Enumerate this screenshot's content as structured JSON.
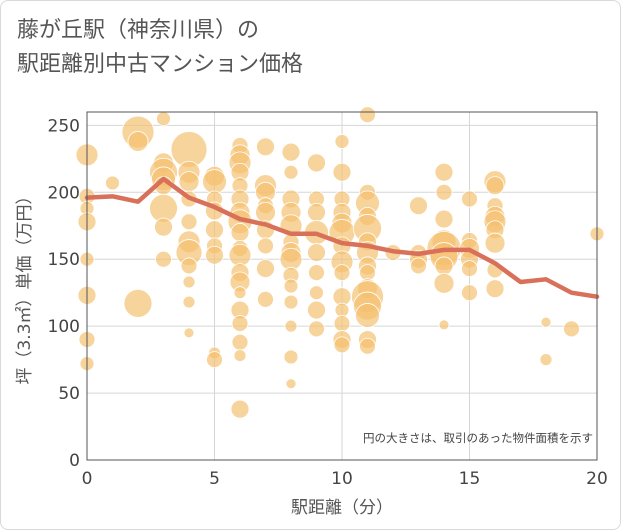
{
  "title_lines": [
    "藤が丘駅（神奈川県）の",
    "駅距離別中古マンション価格"
  ],
  "chart_data": {
    "type": "scatter",
    "xlabel": "駅距離（分）",
    "ylabel": "坪（3.3㎡）単価（万円）",
    "xlim": [
      0,
      20
    ],
    "ylim": [
      0,
      260
    ],
    "xticks": [
      0,
      5,
      10,
      15,
      20
    ],
    "yticks": [
      0,
      50,
      100,
      150,
      200,
      250
    ],
    "grid": true,
    "annotation": "円の大きさは、取引のあった物件面積を示す",
    "bubble_color": "#f5c06e",
    "line_color": "#d9705a",
    "points": [
      [
        0,
        228,
        11
      ],
      [
        0,
        197,
        8
      ],
      [
        0,
        188,
        7
      ],
      [
        0,
        178,
        9
      ],
      [
        0,
        150,
        7
      ],
      [
        0,
        123,
        9
      ],
      [
        0,
        90,
        8
      ],
      [
        0,
        72,
        7
      ],
      [
        1,
        207,
        7
      ],
      [
        2,
        245,
        16
      ],
      [
        2,
        238,
        10
      ],
      [
        2,
        117,
        14
      ],
      [
        3,
        255,
        7
      ],
      [
        3,
        222,
        10
      ],
      [
        3,
        215,
        14
      ],
      [
        3,
        210,
        12
      ],
      [
        3,
        205,
        9
      ],
      [
        3,
        188,
        14
      ],
      [
        3,
        174,
        9
      ],
      [
        3,
        150,
        8
      ],
      [
        4,
        232,
        18
      ],
      [
        4,
        215,
        11
      ],
      [
        4,
        208,
        10
      ],
      [
        4,
        195,
        8
      ],
      [
        4,
        178,
        8
      ],
      [
        4,
        163,
        11
      ],
      [
        4,
        155,
        13
      ],
      [
        4,
        145,
        8
      ],
      [
        4,
        133,
        6
      ],
      [
        4,
        118,
        6
      ],
      [
        4,
        95,
        5
      ],
      [
        5,
        212,
        10
      ],
      [
        5,
        208,
        12
      ],
      [
        5,
        195,
        8
      ],
      [
        5,
        186,
        9
      ],
      [
        5,
        172,
        9
      ],
      [
        5,
        160,
        8
      ],
      [
        5,
        153,
        9
      ],
      [
        5,
        80,
        6
      ],
      [
        5,
        75,
        8
      ],
      [
        6,
        235,
        8
      ],
      [
        6,
        228,
        10
      ],
      [
        6,
        222,
        11
      ],
      [
        6,
        215,
        9
      ],
      [
        6,
        205,
        8
      ],
      [
        6,
        195,
        9
      ],
      [
        6,
        185,
        10
      ],
      [
        6,
        178,
        12
      ],
      [
        6,
        170,
        9
      ],
      [
        6,
        158,
        8
      ],
      [
        6,
        153,
        11
      ],
      [
        6,
        140,
        9
      ],
      [
        6,
        133,
        10
      ],
      [
        6,
        125,
        6
      ],
      [
        6,
        112,
        9
      ],
      [
        6,
        102,
        8
      ],
      [
        6,
        88,
        8
      ],
      [
        6,
        78,
        6
      ],
      [
        6,
        38,
        9
      ],
      [
        7,
        234,
        9
      ],
      [
        7,
        205,
        11
      ],
      [
        7,
        200,
        10
      ],
      [
        7,
        190,
        8
      ],
      [
        7,
        185,
        10
      ],
      [
        7,
        172,
        9
      ],
      [
        7,
        160,
        8
      ],
      [
        7,
        143,
        9
      ],
      [
        7,
        120,
        8
      ],
      [
        8,
        230,
        9
      ],
      [
        8,
        215,
        7
      ],
      [
        8,
        195,
        9
      ],
      [
        8,
        185,
        10
      ],
      [
        8,
        175,
        11
      ],
      [
        8,
        163,
        8
      ],
      [
        8,
        155,
        10
      ],
      [
        8,
        150,
        11
      ],
      [
        8,
        138,
        8
      ],
      [
        8,
        130,
        7
      ],
      [
        8,
        118,
        7
      ],
      [
        8,
        100,
        6
      ],
      [
        8,
        77,
        7
      ],
      [
        8,
        57,
        5
      ],
      [
        9,
        222,
        9
      ],
      [
        9,
        195,
        8
      ],
      [
        9,
        185,
        9
      ],
      [
        9,
        170,
        12
      ],
      [
        9,
        155,
        9
      ],
      [
        9,
        140,
        8
      ],
      [
        9,
        125,
        7
      ],
      [
        9,
        112,
        9
      ],
      [
        9,
        98,
        8
      ],
      [
        10,
        238,
        7
      ],
      [
        10,
        215,
        9
      ],
      [
        10,
        195,
        8
      ],
      [
        10,
        185,
        9
      ],
      [
        10,
        177,
        10
      ],
      [
        10,
        170,
        13
      ],
      [
        10,
        160,
        9
      ],
      [
        10,
        148,
        11
      ],
      [
        10,
        140,
        8
      ],
      [
        10,
        122,
        9
      ],
      [
        10,
        112,
        7
      ],
      [
        10,
        102,
        8
      ],
      [
        10,
        90,
        9
      ],
      [
        10,
        86,
        8
      ],
      [
        11,
        258,
        8
      ],
      [
        11,
        200,
        8
      ],
      [
        11,
        192,
        12
      ],
      [
        11,
        182,
        9
      ],
      [
        11,
        173,
        14
      ],
      [
        11,
        163,
        9
      ],
      [
        11,
        155,
        11
      ],
      [
        11,
        145,
        9
      ],
      [
        11,
        140,
        8
      ],
      [
        11,
        128,
        10
      ],
      [
        11,
        122,
        16
      ],
      [
        11,
        115,
        14
      ],
      [
        11,
        108,
        12
      ],
      [
        11,
        90,
        9
      ],
      [
        11,
        85,
        8
      ],
      [
        12,
        155,
        8
      ],
      [
        13,
        190,
        9
      ],
      [
        13,
        155,
        8
      ],
      [
        13,
        150,
        9
      ],
      [
        13,
        145,
        8
      ],
      [
        14,
        215,
        9
      ],
      [
        14,
        200,
        8
      ],
      [
        14,
        180,
        9
      ],
      [
        14,
        163,
        12
      ],
      [
        14,
        158,
        17
      ],
      [
        14,
        152,
        14
      ],
      [
        14,
        145,
        9
      ],
      [
        14,
        132,
        10
      ],
      [
        14,
        101,
        5
      ],
      [
        15,
        195,
        8
      ],
      [
        15,
        164,
        8
      ],
      [
        15,
        158,
        10
      ],
      [
        15,
        150,
        9
      ],
      [
        15,
        143,
        8
      ],
      [
        15,
        125,
        8
      ],
      [
        16,
        208,
        11
      ],
      [
        16,
        205,
        9
      ],
      [
        16,
        190,
        8
      ],
      [
        16,
        182,
        10
      ],
      [
        16,
        178,
        11
      ],
      [
        16,
        172,
        9
      ],
      [
        16,
        162,
        10
      ],
      [
        16,
        142,
        8
      ],
      [
        16,
        128,
        9
      ],
      [
        18,
        103,
        5
      ],
      [
        18,
        75,
        6
      ],
      [
        19,
        98,
        8
      ],
      [
        20,
        169,
        7
      ]
    ],
    "trend_line": {
      "x": [
        0,
        1,
        2,
        3,
        4,
        5,
        6,
        7,
        8,
        9,
        10,
        11,
        12,
        13,
        14,
        15,
        16,
        17,
        18,
        19,
        20
      ],
      "y": [
        196,
        197,
        193,
        210,
        196,
        189,
        180,
        176,
        169,
        169,
        162,
        160,
        156,
        154,
        157,
        157,
        147,
        133,
        135,
        125,
        122
      ]
    }
  }
}
